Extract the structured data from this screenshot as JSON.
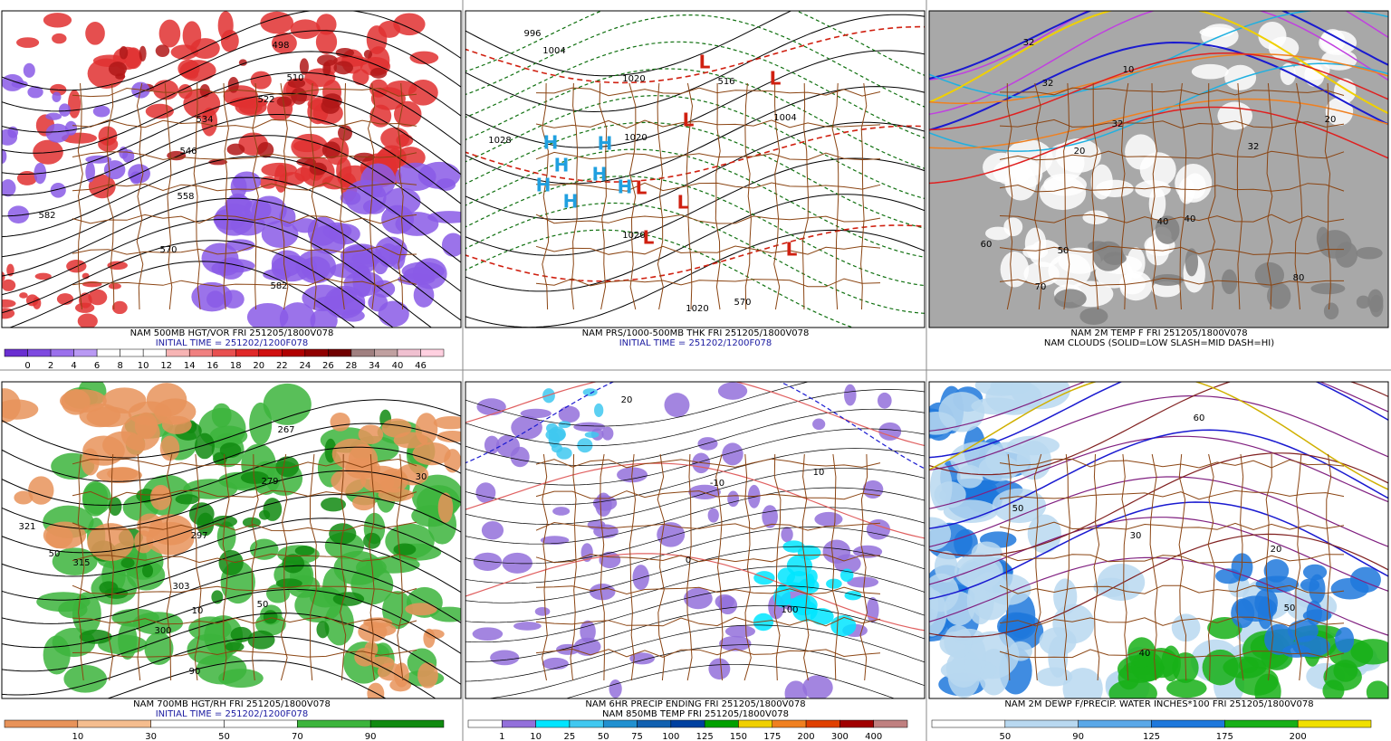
{
  "panels": [
    {
      "caption": [
        {
          "text": "NAM 500MB HGT/VOR FRI 251205/1800V078",
          "color": "#000000"
        },
        {
          "text": "INITIAL TIME = 251202/1200F078",
          "color": "#1a1aa0"
        }
      ],
      "labels": [
        498,
        510,
        522,
        534,
        546,
        558,
        570,
        582,
        582
      ],
      "colorbar": {
        "labels": [
          0,
          2,
          4,
          6,
          8,
          10,
          12,
          14,
          16,
          18,
          20,
          22,
          24,
          26,
          28,
          34,
          40,
          46
        ],
        "colors": [
          "#6a2fd1",
          "#7e4ae0",
          "#9b70ec",
          "#b999f3",
          "#ffffff",
          "#ffffff",
          "#ffffff",
          "#f7b4b4",
          "#f08080",
          "#e85050",
          "#e02828",
          "#d01010",
          "#b00000",
          "#900000",
          "#700000",
          "#a08080",
          "#c0a0a0",
          "#f0c0d0",
          "#ffd0e0"
        ]
      }
    },
    {
      "caption": [
        {
          "text": "NAM PRS/1000-500MB THK FRI 251205/1800V078",
          "color": "#000000"
        },
        {
          "text": "INITIAL TIME = 251202/1200F078",
          "color": "#1a1aa0"
        }
      ],
      "labels": [
        996,
        1004,
        1020,
        1028,
        1020,
        1004,
        516,
        570,
        1020,
        1020
      ],
      "lows": [
        "L",
        "L",
        "L",
        "L",
        "L",
        "L",
        "L"
      ],
      "highs": [
        "H",
        "H",
        "H",
        "H",
        "H",
        "H",
        "H"
      ]
    },
    {
      "caption": [
        {
          "text": "NAM 2M TEMP F FRI 251205/1800V078",
          "color": "#000000"
        },
        {
          "text": "NAM CLOUDS (SOLID=LOW SLASH=MID DASH=HI)",
          "color": "#000000"
        }
      ],
      "labels": [
        32,
        32,
        32,
        20,
        10,
        40,
        50,
        60,
        70,
        80,
        40,
        32,
        20
      ]
    },
    {
      "caption": [
        {
          "text": "NAM 700MB HGT/RH FRI 251205/1800V078",
          "color": "#000000"
        },
        {
          "text": "INITIAL TIME = 251202/1200F078",
          "color": "#1a1aa0"
        }
      ],
      "labels": [
        321,
        315,
        303,
        300,
        297,
        279,
        10,
        50,
        90,
        30,
        267,
        50
      ],
      "colorbar": {
        "labels": [
          10,
          30,
          50,
          70,
          90
        ],
        "colors": [
          "#e8935a",
          "#f5bd8f",
          "#ffffff",
          "#ffffff",
          "#3cb43c",
          "#108a10"
        ]
      }
    },
    {
      "caption": [
        {
          "text": "NAM 6HR PRECIP ENDING FRI 251205/1800V078",
          "color": "#000000"
        },
        {
          "text": "NAM 850MB TEMP FRI 251205/1800V078",
          "color": "#000000"
        }
      ],
      "labels": [
        10,
        100,
        0,
        20,
        -10
      ],
      "colorbar": {
        "labels": [
          1,
          10,
          25,
          50,
          75,
          100,
          125,
          150,
          175,
          200,
          300,
          400
        ],
        "colors": [
          "#ffffff",
          "#9370db",
          "#00e5ff",
          "#40c8f0",
          "#2090d0",
          "#1060b0",
          "#0040a0",
          "#00a000",
          "#f0d000",
          "#f08020",
          "#e04000",
          "#a00000",
          "#c08080"
        ]
      }
    },
    {
      "caption": [
        {
          "text": "NAM 2M DEWP F/PRECIP. WATER INCHES*100 FRI 251205/1800V078",
          "color": "#000000"
        }
      ],
      "labels": [
        30,
        50,
        40,
        60,
        20,
        50
      ],
      "colorbar": {
        "labels": [
          50,
          90,
          125,
          175,
          200
        ],
        "colors": [
          "#ffffff",
          "#b8d8f0",
          "#5aa8e8",
          "#1e78dc",
          "#18b018",
          "#f0e000"
        ]
      }
    }
  ]
}
